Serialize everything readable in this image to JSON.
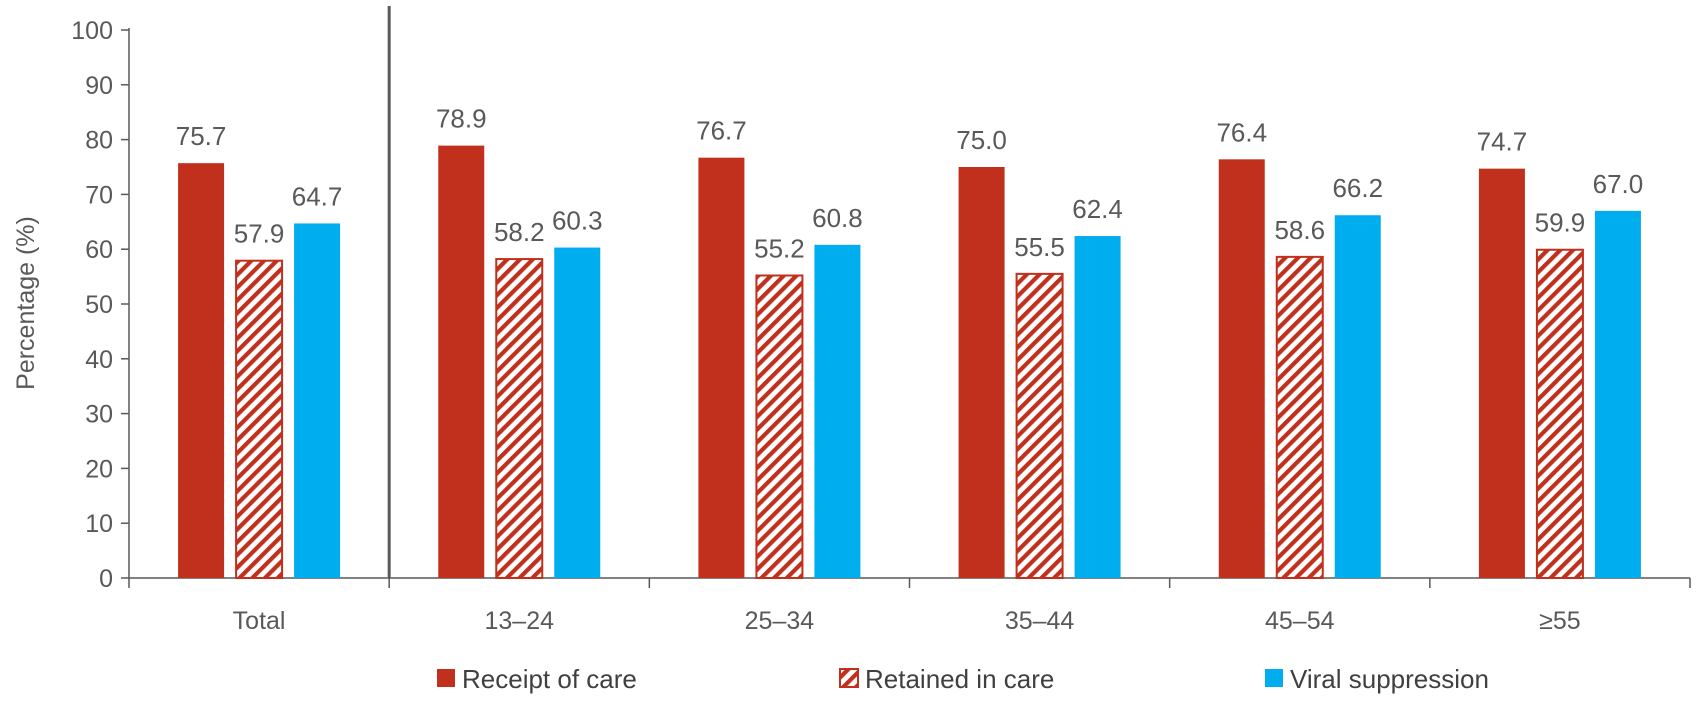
{
  "chart_data": {
    "type": "bar",
    "categories": [
      "Total",
      "13–24",
      "25–34",
      "35–44",
      "45–54",
      "≥55"
    ],
    "series": [
      {
        "name": "Receipt of care",
        "values": [
          75.7,
          78.9,
          76.7,
          75.0,
          76.4,
          74.7
        ],
        "labels": [
          "75.7",
          "78.9",
          "76.7",
          "75.0",
          "76.4",
          "74.7"
        ],
        "color": "#C0301C",
        "pattern": "solid"
      },
      {
        "name": "Retained in care",
        "values": [
          57.9,
          58.2,
          55.2,
          55.5,
          58.6,
          59.9
        ],
        "labels": [
          "57.9",
          "58.2",
          "55.2",
          "55.5",
          "58.6",
          "59.9"
        ],
        "color": "#C0301C",
        "pattern": "diagonal-hatch"
      },
      {
        "name": "Viral suppression",
        "values": [
          64.7,
          60.3,
          60.8,
          62.4,
          66.2,
          67.0
        ],
        "labels": [
          "64.7",
          "60.3",
          "60.8",
          "62.4",
          "66.2",
          "67.0"
        ],
        "color": "#00AEEF",
        "pattern": "solid"
      }
    ],
    "title": "",
    "xlabel": "",
    "ylabel": "Percentage (%)",
    "ylim": [
      0,
      100
    ],
    "yticks": [
      "0",
      "10",
      "20",
      "30",
      "40",
      "50",
      "60",
      "70",
      "80",
      "90",
      "100"
    ],
    "grid": false,
    "legend": "bottom",
    "separator_after_category": "Total"
  }
}
